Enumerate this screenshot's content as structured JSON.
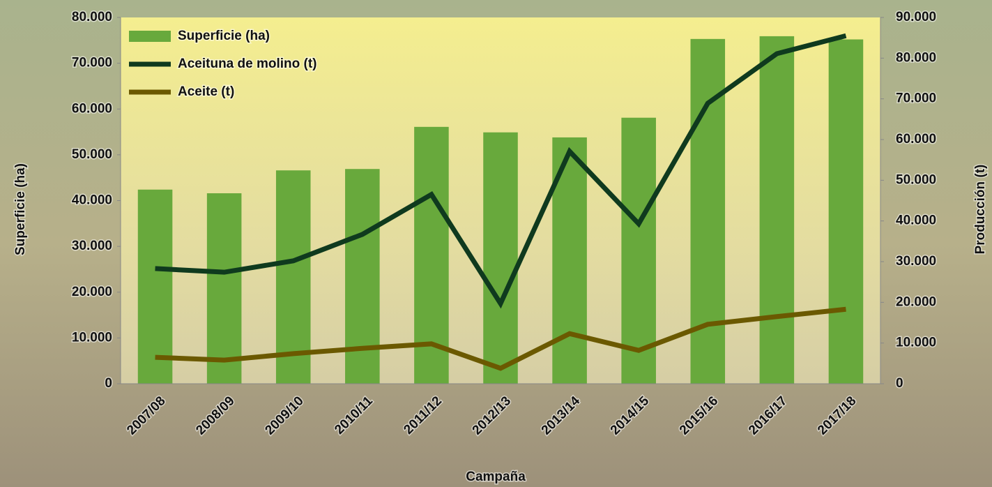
{
  "chart_data": {
    "type": "bar",
    "categories": [
      "2007/08",
      "2008/09",
      "2009/10",
      "2010/11",
      "2011/12",
      "2012/13",
      "2013/14",
      "2014/15",
      "2015/16",
      "2016/17",
      "2017/18"
    ],
    "series": [
      {
        "name": "Superficie (ha)",
        "type": "bar",
        "color": "#68a93c",
        "values": [
          42400,
          41600,
          46600,
          46900,
          56100,
          54900,
          53800,
          58100,
          75300,
          75900,
          75200
        ]
      },
      {
        "name": "Aceituna de molino (t)",
        "type": "line",
        "axis": "y2",
        "color": "#0f3a1e",
        "values": [
          28300,
          27400,
          30200,
          36700,
          46500,
          19700,
          57100,
          39300,
          68900,
          81100,
          85500
        ]
      },
      {
        "name": "Aceite (t)",
        "type": "line",
        "axis": "y2",
        "color": "#6b5900",
        "values": [
          6500,
          5800,
          7400,
          8700,
          9800,
          3800,
          12300,
          8200,
          14600,
          16500,
          18300
        ]
      }
    ],
    "xlabel": "Campaña",
    "ylabel": "Superficie (ha)",
    "y2label": "Producción (t)",
    "ylim": [
      0,
      80000
    ],
    "yticks": [
      0,
      {
        "value": 10000,
        "label": "10.000"
      },
      {
        "value": 20000,
        "label": "20.000"
      },
      {
        "value": 30000,
        "label": "30.000"
      },
      {
        "value": 40000,
        "label": "40.000"
      },
      {
        "value": 50000,
        "label": "50.000"
      },
      {
        "value": 60000,
        "label": "60.000"
      },
      {
        "value": 70000,
        "label": "70.000"
      },
      {
        "value": 80000,
        "label": "80.000"
      }
    ],
    "y2lim": [
      0,
      90000
    ],
    "y2ticks": [
      0,
      {
        "value": 10000,
        "label": "10.000"
      },
      {
        "value": 20000,
        "label": "20.000"
      },
      {
        "value": 30000,
        "label": "30.000"
      },
      {
        "value": 40000,
        "label": "40.000"
      },
      {
        "value": 50000,
        "label": "50.000"
      },
      {
        "value": 60000,
        "label": "60.000"
      },
      {
        "value": 70000,
        "label": "70.000"
      },
      {
        "value": 80000,
        "label": "80.000"
      },
      {
        "value": 90000,
        "label": "90.000"
      }
    ],
    "legend": "upper left"
  }
}
